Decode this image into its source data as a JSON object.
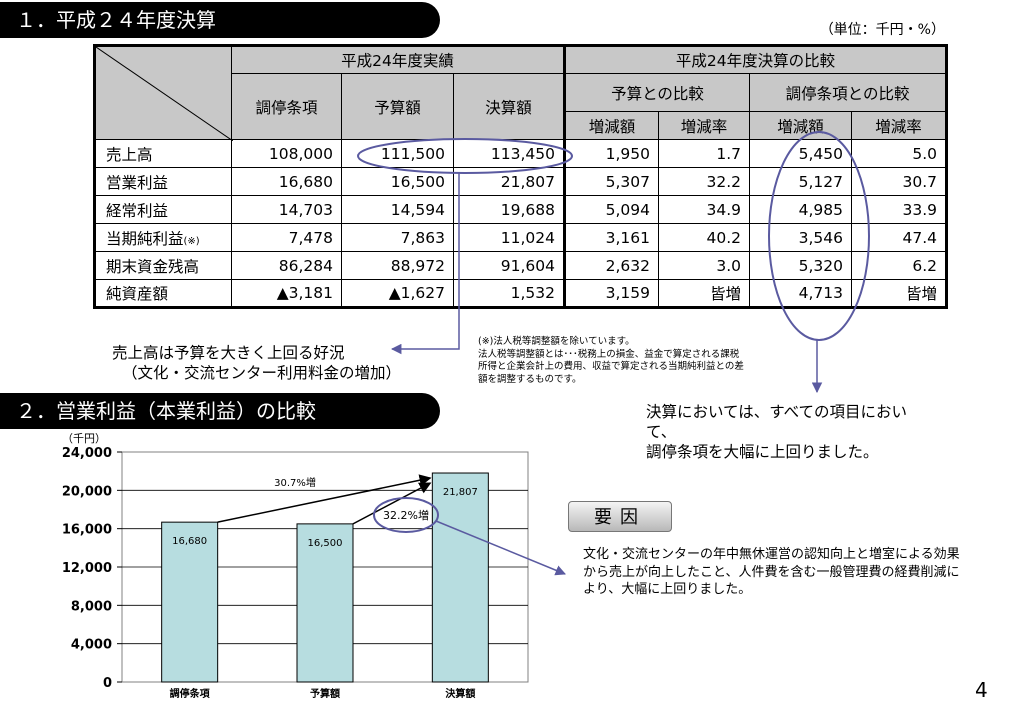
{
  "section1": {
    "title": "１．平成２４年度決算"
  },
  "unit": "（単位：千円・%）",
  "table": {
    "group_results": "平成24年度実績",
    "group_compare": "平成24年度決算の比較",
    "sub_budget_compare": "予算との比較",
    "sub_mediation_compare": "調停条項との比較",
    "col_mediation": "調停条項",
    "col_budget": "予算額",
    "col_actual": "決算額",
    "col_diff1": "増減額",
    "col_rate1": "増減率",
    "col_diff2": "増減額",
    "col_rate2": "増減率",
    "rows": [
      {
        "label": "売上高",
        "note": "",
        "mediation": "108,000",
        "budget": "111,500",
        "actual": "113,450",
        "diff1": "1,950",
        "rate1": "1.7",
        "diff2": "5,450",
        "rate2": "5.0"
      },
      {
        "label": "営業利益",
        "note": "",
        "mediation": "16,680",
        "budget": "16,500",
        "actual": "21,807",
        "diff1": "5,307",
        "rate1": "32.2",
        "diff2": "5,127",
        "rate2": "30.7"
      },
      {
        "label": "経常利益",
        "note": "",
        "mediation": "14,703",
        "budget": "14,594",
        "actual": "19,688",
        "diff1": "5,094",
        "rate1": "34.9",
        "diff2": "4,985",
        "rate2": "33.9"
      },
      {
        "label": "当期純利益",
        "note": "(※)",
        "mediation": "7,478",
        "budget": "7,863",
        "actual": "11,024",
        "diff1": "3,161",
        "rate1": "40.2",
        "diff2": "3,546",
        "rate2": "47.4"
      },
      {
        "label": "期末資金残高",
        "note": "",
        "mediation": "86,284",
        "budget": "88,972",
        "actual": "91,604",
        "diff1": "2,632",
        "rate1": "3.0",
        "diff2": "5,320",
        "rate2": "6.2"
      },
      {
        "label": "純資産額",
        "note": "",
        "mediation": "▲3,181",
        "budget": "▲1,627",
        "actual": "1,532",
        "diff1": "3,159",
        "rate1": "皆増",
        "diff2": "4,713",
        "rate2": "皆増"
      }
    ]
  },
  "caption_sales": {
    "line1": "売上高は予算を大きく上回る好況",
    "line2": "（文化・交流センター利用料金の増加）"
  },
  "footnote": {
    "line1": "(※)法人税等調整額を除いています。",
    "line2": "法人税等調整額とは･･･税務上の損金、益金で算定される課税",
    "line3": "所得と企業会計上の費用、収益で算定される当期純利益との差",
    "line4": "額を調整するものです。"
  },
  "message": {
    "line1": "決算においては、すべての項目におい",
    "line2": "て、",
    "line3": "調停条項を大幅に上回りました。"
  },
  "section2": {
    "title": "２．営業利益（本業利益）の比較"
  },
  "factor": {
    "label": "要因",
    "text": "文化・交流センターの年中無休運営の認知向上と増室による効果から売上が向上したこと、人件費を含む一般管理費の経費削減により、大幅に上回りました。"
  },
  "chart_data": {
    "type": "bar",
    "ylabel": "（千円）",
    "categories": [
      "調停条項",
      "予算額",
      "決算額"
    ],
    "values": [
      16680,
      16500,
      21807
    ],
    "data_labels": [
      "16,680",
      "16,500",
      "21,807"
    ],
    "ylim": [
      0,
      24000
    ],
    "yticks": [
      0,
      4000,
      8000,
      12000,
      16000,
      20000,
      24000
    ],
    "ytick_labels": [
      "0",
      "4,000",
      "8,000",
      "12,000",
      "16,000",
      "20,000",
      "24,000"
    ],
    "grid": true,
    "bar_color": "#b7dde0",
    "annotations": [
      {
        "text": "30.7%増",
        "from": "調停条項",
        "to": "決算額"
      },
      {
        "text": "32.2%増",
        "from": "予算額",
        "to": "決算額"
      }
    ]
  },
  "page_number": "4",
  "colors": {
    "highlight_ellipse": "#5a5aa0",
    "header_fill": "#c8c8c8"
  }
}
